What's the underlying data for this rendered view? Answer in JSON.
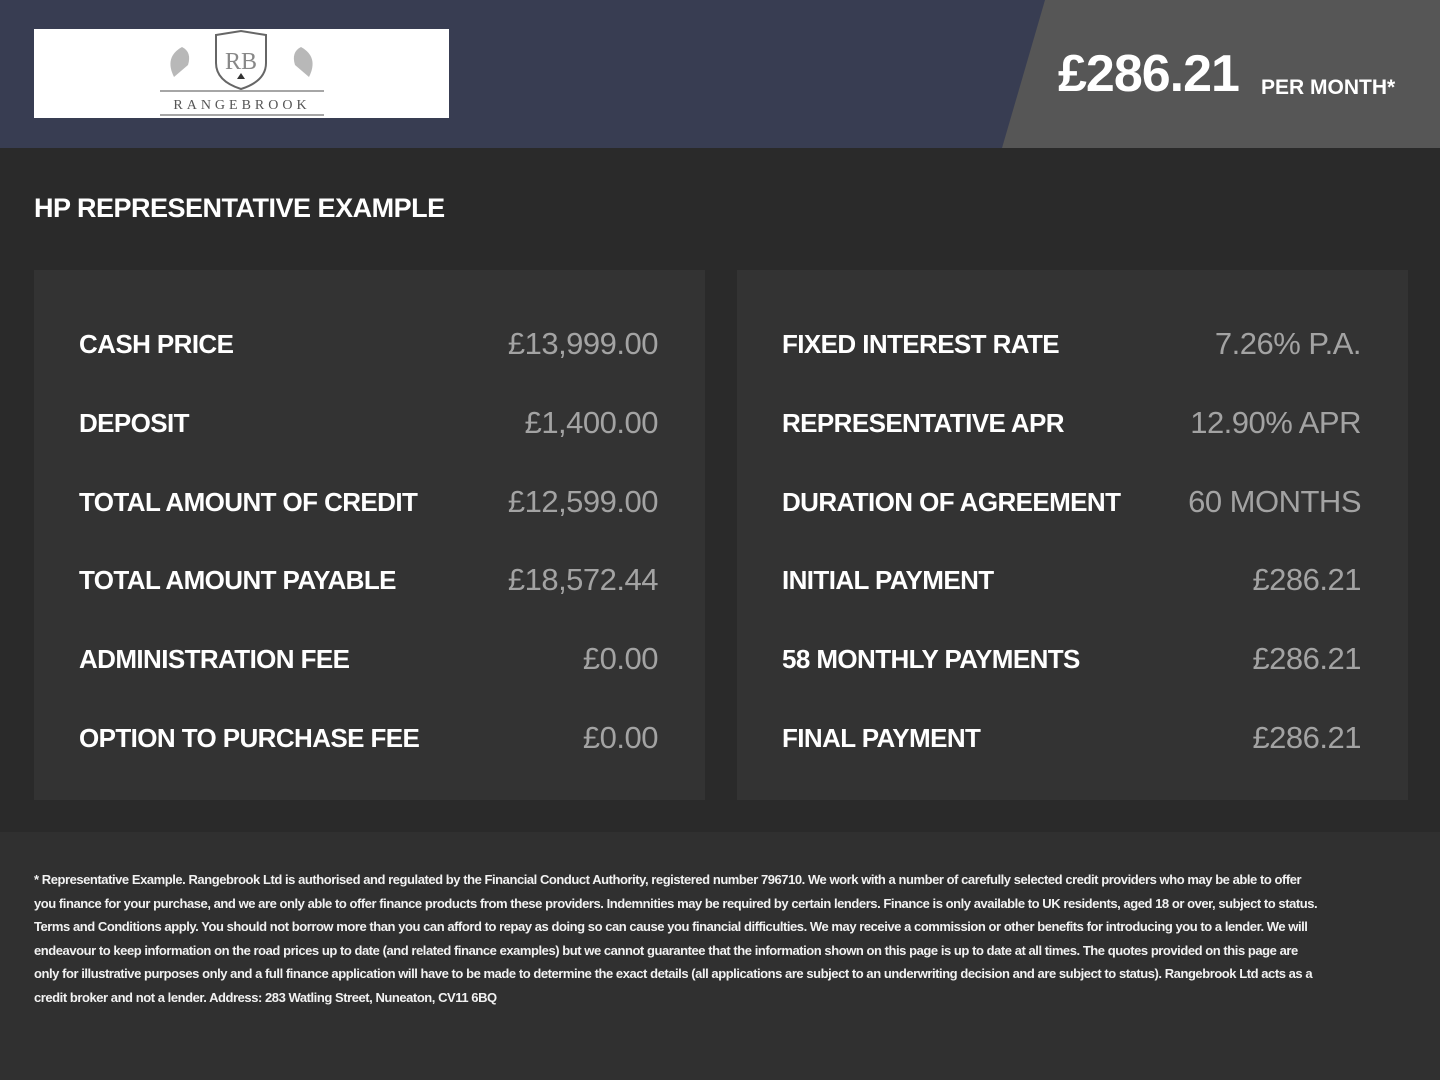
{
  "header": {
    "logo_text": "RANGEBROOK",
    "logo_monogram": "RB",
    "monthly_price": "£286.21",
    "per_month_label": "PER MONTH*",
    "colors": {
      "navy": "#383d52",
      "grey": "#565656"
    }
  },
  "section_title": "HP REPRESENTATIVE EXAMPLE",
  "left_panel": [
    {
      "label": "CASH PRICE",
      "value": "£13,999.00"
    },
    {
      "label": "DEPOSIT",
      "value": "£1,400.00"
    },
    {
      "label": "TOTAL AMOUNT OF CREDIT",
      "value": "£12,599.00"
    },
    {
      "label": "TOTAL AMOUNT PAYABLE",
      "value": "£18,572.44"
    },
    {
      "label": "ADMINISTRATION FEE",
      "value": "£0.00"
    },
    {
      "label": "OPTION TO PURCHASE FEE",
      "value": "£0.00"
    }
  ],
  "right_panel": [
    {
      "label": "FIXED INTEREST RATE",
      "value": "7.26% P.A."
    },
    {
      "label": "REPRESENTATIVE APR",
      "value": "12.90% APR"
    },
    {
      "label": "DURATION OF AGREEMENT",
      "value": "60 MONTHS"
    },
    {
      "label": "INITIAL PAYMENT",
      "value": "£286.21"
    },
    {
      "label": "58 MONTHLY PAYMENTS",
      "value": "£286.21"
    },
    {
      "label": "FINAL PAYMENT",
      "value": "£286.21"
    }
  ],
  "footer": {
    "disclaimer": "* Representative Example. Rangebrook Ltd is authorised and regulated by the Financial Conduct Authority, registered number 796710. We work with a number of carefully selected credit providers who may be able to offer you finance for your purchase, and we are only able to offer finance products from these providers. Indemnities may be required by certain lenders. Finance is only available to UK residents, aged 18 or over, subject to status. Terms and Conditions apply. You should not borrow more than you can afford to repay as doing so can cause you financial difficulties. We may receive a commission or other benefits for introducing you to a lender. We will endeavour to keep information on the road prices up to date (and related finance examples) but we cannot guarantee that the information shown on this page is up to date at all times. The quotes provided on this page are only for illustrative purposes only and a full finance application will have to be made to determine the exact details (all applications are subject to an underwriting decision and are subject to status). Rangebrook Ltd acts as a credit broker and not a lender. Address: 283 Watling Street, Nuneaton, CV11 6BQ"
  }
}
